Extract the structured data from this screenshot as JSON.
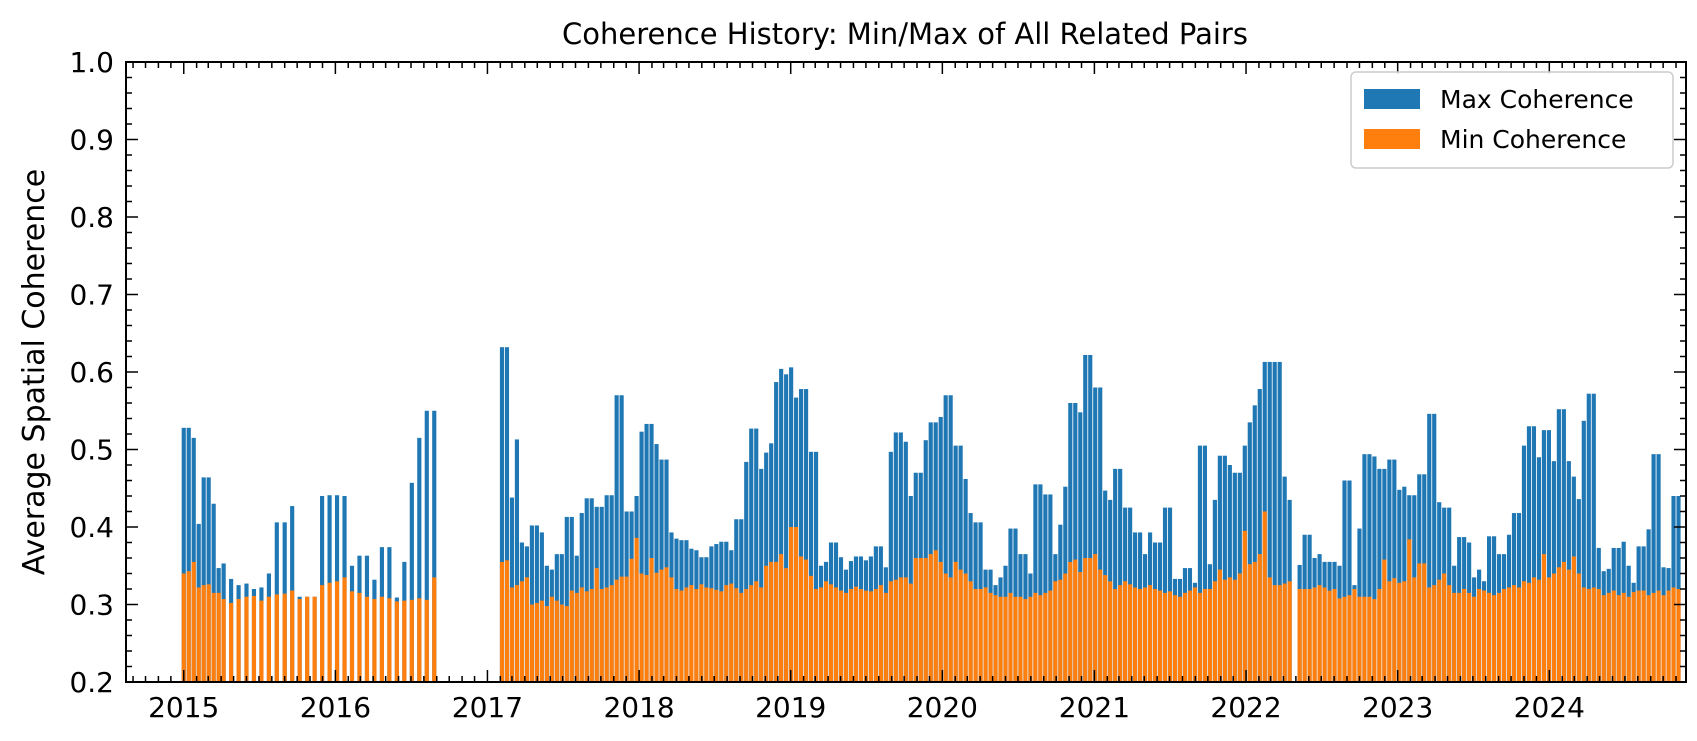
{
  "chart_data": {
    "type": "bar",
    "title": "Coherence History: Min/Max of All Related Pairs",
    "xlabel": "",
    "ylabel": "Average Spatial Coherence",
    "ylim": [
      0.2,
      1.0
    ],
    "xlim": [
      "2014-08-15",
      "2024-11-25"
    ],
    "yticks": [
      "0.2",
      "0.3",
      "0.4",
      "0.5",
      "0.6",
      "0.7",
      "0.8",
      "0.9",
      "1.0"
    ],
    "xticks": [
      "2015",
      "2016",
      "2017",
      "2018",
      "2019",
      "2020",
      "2021",
      "2022",
      "2023",
      "2024"
    ],
    "grid": false,
    "legend_position": "upper right",
    "bar_width_days": 10,
    "series": [
      {
        "name": "Max Coherence",
        "color": "#1f77b4"
      },
      {
        "name": "Min Coherence",
        "color": "#ff7f0e"
      }
    ],
    "bars": [
      [
        "2015-01-01",
        0.528,
        0.34
      ],
      [
        "2015-01-13",
        0.528,
        0.343
      ],
      [
        "2015-01-25",
        0.515,
        0.355
      ],
      [
        "2015-02-06",
        0.404,
        0.322
      ],
      [
        "2015-02-18",
        0.464,
        0.325
      ],
      [
        "2015-03-02",
        0.464,
        0.326
      ],
      [
        "2015-03-14",
        0.43,
        0.315
      ],
      [
        "2015-03-26",
        0.347,
        0.315
      ],
      [
        "2015-04-07",
        0.353,
        0.307
      ],
      [
        "2015-04-25",
        0.333,
        0.302
      ],
      [
        "2015-05-13",
        0.325,
        0.307
      ],
      [
        "2015-06-01",
        0.327,
        0.31
      ],
      [
        "2015-06-19",
        0.32,
        0.311
      ],
      [
        "2015-07-07",
        0.322,
        0.305
      ],
      [
        "2015-07-25",
        0.34,
        0.31
      ],
      [
        "2015-08-13",
        0.406,
        0.313
      ],
      [
        "2015-09-01",
        0.406,
        0.314
      ],
      [
        "2015-09-19",
        0.427,
        0.318
      ],
      [
        "2015-10-07",
        0.31,
        0.307
      ],
      [
        "2015-10-25",
        0.31,
        0.31
      ],
      [
        "2015-11-12",
        0.31,
        0.31
      ],
      [
        "2015-11-30",
        0.44,
        0.325
      ],
      [
        "2015-12-18",
        0.441,
        0.328
      ],
      [
        "2016-01-05",
        0.441,
        0.33
      ],
      [
        "2016-01-23",
        0.44,
        0.335
      ],
      [
        "2016-02-10",
        0.35,
        0.317
      ],
      [
        "2016-02-28",
        0.363,
        0.315
      ],
      [
        "2016-03-17",
        0.363,
        0.31
      ],
      [
        "2016-04-04",
        0.332,
        0.307
      ],
      [
        "2016-04-22",
        0.374,
        0.31
      ],
      [
        "2016-05-10",
        0.374,
        0.308
      ],
      [
        "2016-05-28",
        0.309,
        0.304
      ],
      [
        "2016-06-15",
        0.355,
        0.305
      ],
      [
        "2016-07-03",
        0.457,
        0.306
      ],
      [
        "2016-07-21",
        0.515,
        0.308
      ],
      [
        "2016-08-08",
        0.55,
        0.306
      ],
      [
        "2016-08-26",
        0.55,
        0.335
      ],
      [
        "2017-02-05",
        0.632,
        0.355
      ],
      [
        "2017-02-17",
        0.632,
        0.357
      ],
      [
        "2017-03-01",
        0.438,
        0.322
      ],
      [
        "2017-03-13",
        0.513,
        0.325
      ],
      [
        "2017-03-25",
        0.38,
        0.33
      ],
      [
        "2017-04-06",
        0.375,
        0.335
      ],
      [
        "2017-04-18",
        0.402,
        0.3
      ],
      [
        "2017-04-30",
        0.402,
        0.302
      ],
      [
        "2017-05-12",
        0.393,
        0.305
      ],
      [
        "2017-05-24",
        0.35,
        0.298
      ],
      [
        "2017-06-05",
        0.345,
        0.31
      ],
      [
        "2017-06-17",
        0.365,
        0.305
      ],
      [
        "2017-06-29",
        0.365,
        0.3
      ],
      [
        "2017-07-11",
        0.413,
        0.298
      ],
      [
        "2017-07-23",
        0.413,
        0.318
      ],
      [
        "2017-08-04",
        0.363,
        0.315
      ],
      [
        "2017-08-16",
        0.418,
        0.322
      ],
      [
        "2017-08-28",
        0.437,
        0.317
      ],
      [
        "2017-09-09",
        0.437,
        0.32
      ],
      [
        "2017-09-21",
        0.426,
        0.347
      ],
      [
        "2017-10-03",
        0.426,
        0.32
      ],
      [
        "2017-10-15",
        0.441,
        0.322
      ],
      [
        "2017-10-27",
        0.441,
        0.325
      ],
      [
        "2017-11-08",
        0.57,
        0.332
      ],
      [
        "2017-11-20",
        0.57,
        0.336
      ],
      [
        "2017-12-02",
        0.42,
        0.336
      ],
      [
        "2017-12-14",
        0.42,
        0.359
      ],
      [
        "2017-12-26",
        0.44,
        0.386
      ],
      [
        "2018-01-07",
        0.523,
        0.34
      ],
      [
        "2018-01-19",
        0.533,
        0.338
      ],
      [
        "2018-01-31",
        0.533,
        0.36
      ],
      [
        "2018-02-12",
        0.507,
        0.341
      ],
      [
        "2018-02-24",
        0.487,
        0.345
      ],
      [
        "2018-03-08",
        0.487,
        0.348
      ],
      [
        "2018-03-20",
        0.393,
        0.335
      ],
      [
        "2018-04-01",
        0.385,
        0.32
      ],
      [
        "2018-04-13",
        0.383,
        0.318
      ],
      [
        "2018-04-25",
        0.383,
        0.322
      ],
      [
        "2018-05-07",
        0.372,
        0.325
      ],
      [
        "2018-05-19",
        0.37,
        0.32
      ],
      [
        "2018-05-31",
        0.361,
        0.326
      ],
      [
        "2018-06-12",
        0.361,
        0.322
      ],
      [
        "2018-06-24",
        0.375,
        0.321
      ],
      [
        "2018-07-06",
        0.378,
        0.319
      ],
      [
        "2018-07-18",
        0.381,
        0.317
      ],
      [
        "2018-07-30",
        0.381,
        0.325
      ],
      [
        "2018-08-11",
        0.37,
        0.327
      ],
      [
        "2018-08-23",
        0.41,
        0.321
      ],
      [
        "2018-09-04",
        0.41,
        0.315
      ],
      [
        "2018-09-16",
        0.484,
        0.32
      ],
      [
        "2018-09-28",
        0.527,
        0.325
      ],
      [
        "2018-10-10",
        0.527,
        0.33
      ],
      [
        "2018-10-22",
        0.475,
        0.322
      ],
      [
        "2018-11-03",
        0.496,
        0.35
      ],
      [
        "2018-11-15",
        0.508,
        0.355
      ],
      [
        "2018-11-27",
        0.587,
        0.355
      ],
      [
        "2018-12-09",
        0.604,
        0.365
      ],
      [
        "2018-12-21",
        0.597,
        0.347
      ],
      [
        "2019-01-02",
        0.606,
        0.4
      ],
      [
        "2019-01-14",
        0.567,
        0.4
      ],
      [
        "2019-01-26",
        0.578,
        0.362
      ],
      [
        "2019-02-07",
        0.578,
        0.358
      ],
      [
        "2019-02-19",
        0.497,
        0.337
      ],
      [
        "2019-03-03",
        0.497,
        0.32
      ],
      [
        "2019-03-15",
        0.35,
        0.322
      ],
      [
        "2019-03-27",
        0.355,
        0.33
      ],
      [
        "2019-04-08",
        0.38,
        0.326
      ],
      [
        "2019-04-20",
        0.38,
        0.322
      ],
      [
        "2019-05-02",
        0.361,
        0.318
      ],
      [
        "2019-05-14",
        0.345,
        0.315
      ],
      [
        "2019-05-26",
        0.356,
        0.32
      ],
      [
        "2019-06-07",
        0.362,
        0.323
      ],
      [
        "2019-06-19",
        0.362,
        0.32
      ],
      [
        "2019-07-01",
        0.357,
        0.318
      ],
      [
        "2019-07-13",
        0.362,
        0.317
      ],
      [
        "2019-07-25",
        0.375,
        0.32
      ],
      [
        "2019-08-06",
        0.375,
        0.325
      ],
      [
        "2019-08-18",
        0.348,
        0.315
      ],
      [
        "2019-08-30",
        0.497,
        0.33
      ],
      [
        "2019-09-11",
        0.522,
        0.332
      ],
      [
        "2019-09-23",
        0.522,
        0.335
      ],
      [
        "2019-10-05",
        0.51,
        0.335
      ],
      [
        "2019-10-17",
        0.44,
        0.327
      ],
      [
        "2019-10-29",
        0.47,
        0.36
      ],
      [
        "2019-11-10",
        0.47,
        0.36
      ],
      [
        "2019-11-22",
        0.512,
        0.36
      ],
      [
        "2019-12-04",
        0.535,
        0.365
      ],
      [
        "2019-12-16",
        0.535,
        0.37
      ],
      [
        "2019-12-28",
        0.542,
        0.355
      ],
      [
        "2020-01-09",
        0.57,
        0.34
      ],
      [
        "2020-01-21",
        0.57,
        0.335
      ],
      [
        "2020-02-02",
        0.505,
        0.355
      ],
      [
        "2020-02-14",
        0.505,
        0.345
      ],
      [
        "2020-02-26",
        0.462,
        0.34
      ],
      [
        "2020-03-09",
        0.418,
        0.33
      ],
      [
        "2020-03-21",
        0.406,
        0.32
      ],
      [
        "2020-04-02",
        0.406,
        0.32
      ],
      [
        "2020-04-14",
        0.345,
        0.322
      ],
      [
        "2020-04-26",
        0.345,
        0.315
      ],
      [
        "2020-05-08",
        0.325,
        0.312
      ],
      [
        "2020-05-20",
        0.335,
        0.31
      ],
      [
        "2020-06-01",
        0.35,
        0.31
      ],
      [
        "2020-06-13",
        0.398,
        0.315
      ],
      [
        "2020-06-25",
        0.398,
        0.31
      ],
      [
        "2020-07-07",
        0.365,
        0.31
      ],
      [
        "2020-07-19",
        0.365,
        0.307
      ],
      [
        "2020-07-31",
        0.34,
        0.31
      ],
      [
        "2020-08-12",
        0.455,
        0.315
      ],
      [
        "2020-08-24",
        0.455,
        0.312
      ],
      [
        "2020-09-05",
        0.442,
        0.315
      ],
      [
        "2020-09-17",
        0.442,
        0.318
      ],
      [
        "2020-09-29",
        0.365,
        0.33
      ],
      [
        "2020-10-11",
        0.403,
        0.332
      ],
      [
        "2020-10-23",
        0.452,
        0.34
      ],
      [
        "2020-11-04",
        0.56,
        0.355
      ],
      [
        "2020-11-16",
        0.56,
        0.358
      ],
      [
        "2020-11-28",
        0.548,
        0.342
      ],
      [
        "2020-12-10",
        0.622,
        0.36
      ],
      [
        "2020-12-22",
        0.622,
        0.36
      ],
      [
        "2021-01-03",
        0.58,
        0.365
      ],
      [
        "2021-01-15",
        0.58,
        0.345
      ],
      [
        "2021-01-27",
        0.447,
        0.338
      ],
      [
        "2021-02-08",
        0.435,
        0.33
      ],
      [
        "2021-02-20",
        0.475,
        0.32
      ],
      [
        "2021-03-04",
        0.475,
        0.325
      ],
      [
        "2021-03-16",
        0.425,
        0.33
      ],
      [
        "2021-03-28",
        0.425,
        0.326
      ],
      [
        "2021-04-09",
        0.393,
        0.322
      ],
      [
        "2021-04-21",
        0.393,
        0.32
      ],
      [
        "2021-05-03",
        0.365,
        0.322
      ],
      [
        "2021-05-15",
        0.393,
        0.325
      ],
      [
        "2021-05-27",
        0.38,
        0.32
      ],
      [
        "2021-06-08",
        0.38,
        0.318
      ],
      [
        "2021-06-20",
        0.425,
        0.315
      ],
      [
        "2021-07-02",
        0.425,
        0.317
      ],
      [
        "2021-07-14",
        0.333,
        0.312
      ],
      [
        "2021-07-26",
        0.333,
        0.31
      ],
      [
        "2021-08-07",
        0.347,
        0.315
      ],
      [
        "2021-08-19",
        0.347,
        0.318
      ],
      [
        "2021-08-31",
        0.328,
        0.322
      ],
      [
        "2021-09-12",
        0.505,
        0.315
      ],
      [
        "2021-09-24",
        0.505,
        0.32
      ],
      [
        "2021-10-06",
        0.352,
        0.32
      ],
      [
        "2021-10-18",
        0.435,
        0.33
      ],
      [
        "2021-10-30",
        0.492,
        0.345
      ],
      [
        "2021-11-11",
        0.492,
        0.332
      ],
      [
        "2021-11-23",
        0.48,
        0.335
      ],
      [
        "2021-12-05",
        0.47,
        0.332
      ],
      [
        "2021-12-17",
        0.47,
        0.34
      ],
      [
        "2021-12-29",
        0.505,
        0.395
      ],
      [
        "2022-01-10",
        0.535,
        0.352
      ],
      [
        "2022-01-22",
        0.557,
        0.355
      ],
      [
        "2022-02-03",
        0.578,
        0.365
      ],
      [
        "2022-02-15",
        0.613,
        0.42
      ],
      [
        "2022-02-27",
        0.613,
        0.335
      ],
      [
        "2022-03-11",
        0.613,
        0.325
      ],
      [
        "2022-03-23",
        0.613,
        0.325
      ],
      [
        "2022-04-04",
        0.465,
        0.327
      ],
      [
        "2022-04-16",
        0.435,
        0.33
      ],
      [
        "2022-05-10",
        0.351,
        0.32
      ],
      [
        "2022-05-22",
        0.39,
        0.32
      ],
      [
        "2022-06-03",
        0.39,
        0.32
      ],
      [
        "2022-06-15",
        0.36,
        0.322
      ],
      [
        "2022-06-27",
        0.365,
        0.325
      ],
      [
        "2022-07-09",
        0.355,
        0.322
      ],
      [
        "2022-07-21",
        0.355,
        0.318
      ],
      [
        "2022-08-02",
        0.355,
        0.32
      ],
      [
        "2022-08-14",
        0.35,
        0.308
      ],
      [
        "2022-08-26",
        0.46,
        0.31
      ],
      [
        "2022-09-07",
        0.46,
        0.312
      ],
      [
        "2022-09-19",
        0.325,
        0.32
      ],
      [
        "2022-10-01",
        0.398,
        0.31
      ],
      [
        "2022-10-13",
        0.494,
        0.31
      ],
      [
        "2022-10-25",
        0.494,
        0.31
      ],
      [
        "2022-11-06",
        0.491,
        0.307
      ],
      [
        "2022-11-18",
        0.475,
        0.32
      ],
      [
        "2022-11-30",
        0.475,
        0.358
      ],
      [
        "2022-12-12",
        0.487,
        0.33
      ],
      [
        "2022-12-24",
        0.487,
        0.334
      ],
      [
        "2023-01-05",
        0.448,
        0.328
      ],
      [
        "2023-01-17",
        0.452,
        0.33
      ],
      [
        "2023-01-29",
        0.441,
        0.384
      ],
      [
        "2023-02-10",
        0.441,
        0.335
      ],
      [
        "2023-02-22",
        0.468,
        0.353
      ],
      [
        "2023-03-06",
        0.468,
        0.353
      ],
      [
        "2023-03-18",
        0.546,
        0.322
      ],
      [
        "2023-03-30",
        0.546,
        0.325
      ],
      [
        "2023-04-11",
        0.432,
        0.332
      ],
      [
        "2023-04-23",
        0.425,
        0.34
      ],
      [
        "2023-05-05",
        0.425,
        0.325
      ],
      [
        "2023-05-17",
        0.35,
        0.315
      ],
      [
        "2023-05-29",
        0.387,
        0.315
      ],
      [
        "2023-06-10",
        0.387,
        0.32
      ],
      [
        "2023-06-22",
        0.38,
        0.315
      ],
      [
        "2023-07-04",
        0.335,
        0.31
      ],
      [
        "2023-07-16",
        0.345,
        0.32
      ],
      [
        "2023-07-28",
        0.33,
        0.318
      ],
      [
        "2023-08-09",
        0.388,
        0.315
      ],
      [
        "2023-08-21",
        0.388,
        0.312
      ],
      [
        "2023-09-02",
        0.365,
        0.315
      ],
      [
        "2023-09-14",
        0.365,
        0.32
      ],
      [
        "2023-09-26",
        0.39,
        0.322
      ],
      [
        "2023-10-08",
        0.418,
        0.325
      ],
      [
        "2023-10-20",
        0.418,
        0.322
      ],
      [
        "2023-11-01",
        0.505,
        0.33
      ],
      [
        "2023-11-13",
        0.53,
        0.328
      ],
      [
        "2023-11-25",
        0.53,
        0.335
      ],
      [
        "2023-12-07",
        0.49,
        0.332
      ],
      [
        "2023-12-19",
        0.525,
        0.365
      ],
      [
        "2023-12-31",
        0.525,
        0.335
      ],
      [
        "2024-01-12",
        0.485,
        0.34
      ],
      [
        "2024-01-24",
        0.552,
        0.348
      ],
      [
        "2024-02-05",
        0.552,
        0.355
      ],
      [
        "2024-02-17",
        0.485,
        0.345
      ],
      [
        "2024-02-29",
        0.465,
        0.362
      ],
      [
        "2024-03-12",
        0.436,
        0.34
      ],
      [
        "2024-03-24",
        0.537,
        0.322
      ],
      [
        "2024-04-05",
        0.572,
        0.32
      ],
      [
        "2024-04-17",
        0.572,
        0.322
      ],
      [
        "2024-04-29",
        0.373,
        0.32
      ],
      [
        "2024-05-11",
        0.343,
        0.312
      ],
      [
        "2024-05-23",
        0.346,
        0.315
      ],
      [
        "2024-06-04",
        0.373,
        0.318
      ],
      [
        "2024-06-16",
        0.373,
        0.312
      ],
      [
        "2024-06-28",
        0.381,
        0.315
      ],
      [
        "2024-07-10",
        0.35,
        0.31
      ],
      [
        "2024-07-22",
        0.328,
        0.316
      ],
      [
        "2024-08-03",
        0.375,
        0.318
      ],
      [
        "2024-08-15",
        0.375,
        0.318
      ],
      [
        "2024-08-27",
        0.397,
        0.312
      ],
      [
        "2024-09-08",
        0.494,
        0.315
      ],
      [
        "2024-09-20",
        0.494,
        0.318
      ],
      [
        "2024-10-02",
        0.348,
        0.312
      ],
      [
        "2024-10-14",
        0.347,
        0.318
      ],
      [
        "2024-10-26",
        0.44,
        0.322
      ],
      [
        "2024-11-07",
        0.44,
        0.32
      ]
    ]
  }
}
